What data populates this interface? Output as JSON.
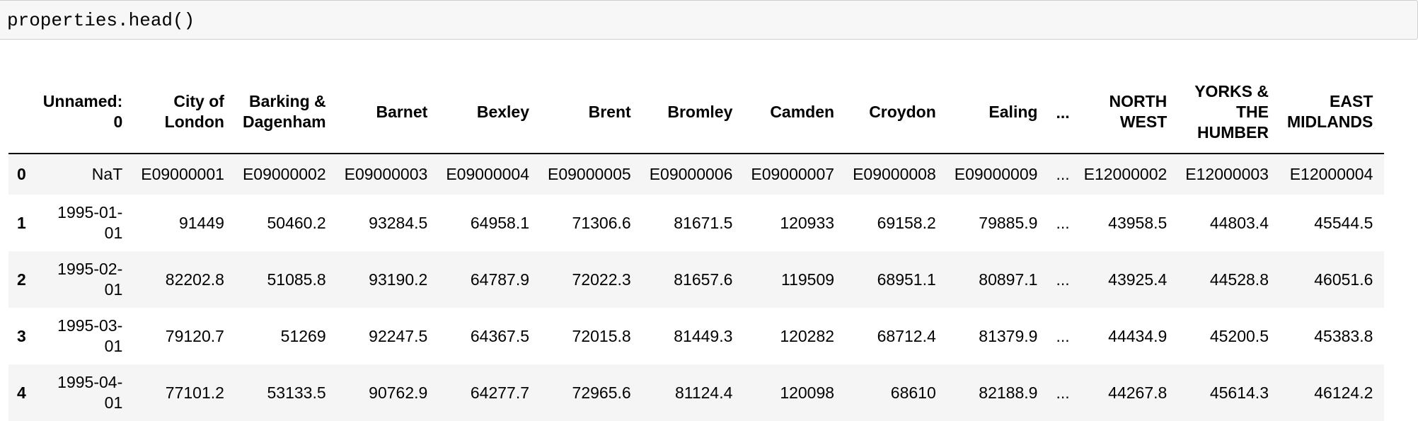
{
  "code_cell": {
    "source": "properties.head()"
  },
  "dataframe": {
    "columns": [
      {
        "label_lines": [
          ""
        ]
      },
      {
        "label_lines": [
          "Unnamed:",
          "0"
        ]
      },
      {
        "label_lines": [
          "City of",
          "London"
        ]
      },
      {
        "label_lines": [
          "Barking &",
          "Dagenham"
        ]
      },
      {
        "label_lines": [
          "Barnet"
        ]
      },
      {
        "label_lines": [
          "Bexley"
        ]
      },
      {
        "label_lines": [
          "Brent"
        ]
      },
      {
        "label_lines": [
          "Bromley"
        ]
      },
      {
        "label_lines": [
          "Camden"
        ]
      },
      {
        "label_lines": [
          "Croydon"
        ]
      },
      {
        "label_lines": [
          "Ealing"
        ]
      },
      {
        "label_lines": [
          "..."
        ]
      },
      {
        "label_lines": [
          "NORTH",
          "WEST"
        ]
      },
      {
        "label_lines": [
          "YORKS &",
          "THE",
          "HUMBER"
        ]
      },
      {
        "label_lines": [
          "EAST",
          "MIDLANDS"
        ]
      }
    ],
    "rows": [
      {
        "index": "0",
        "date_lines": [
          "NaT"
        ],
        "values": [
          "E09000001",
          "E09000002",
          "E09000003",
          "E09000004",
          "E09000005",
          "E09000006",
          "E09000007",
          "E09000008",
          "E09000009",
          "...",
          "E12000002",
          "E12000003",
          "E12000004"
        ]
      },
      {
        "index": "1",
        "date_lines": [
          "1995-01-",
          "01"
        ],
        "values": [
          "91449",
          "50460.2",
          "93284.5",
          "64958.1",
          "71306.6",
          "81671.5",
          "120933",
          "69158.2",
          "79885.9",
          "...",
          "43958.5",
          "44803.4",
          "45544.5"
        ]
      },
      {
        "index": "2",
        "date_lines": [
          "1995-02-",
          "01"
        ],
        "values": [
          "82202.8",
          "51085.8",
          "93190.2",
          "64787.9",
          "72022.3",
          "81657.6",
          "119509",
          "68951.1",
          "80897.1",
          "...",
          "43925.4",
          "44528.8",
          "46051.6"
        ]
      },
      {
        "index": "3",
        "date_lines": [
          "1995-03-",
          "01"
        ],
        "values": [
          "79120.7",
          "51269",
          "92247.5",
          "64367.5",
          "72015.8",
          "81449.3",
          "120282",
          "68712.4",
          "81379.9",
          "...",
          "44434.9",
          "45200.5",
          "45383.8"
        ]
      },
      {
        "index": "4",
        "date_lines": [
          "1995-04-",
          "01"
        ],
        "values": [
          "77101.2",
          "53133.5",
          "90762.9",
          "64277.7",
          "72965.6",
          "81124.4",
          "120098",
          "68610",
          "82188.9",
          "...",
          "44267.8",
          "45614.3",
          "46124.2"
        ]
      }
    ]
  }
}
